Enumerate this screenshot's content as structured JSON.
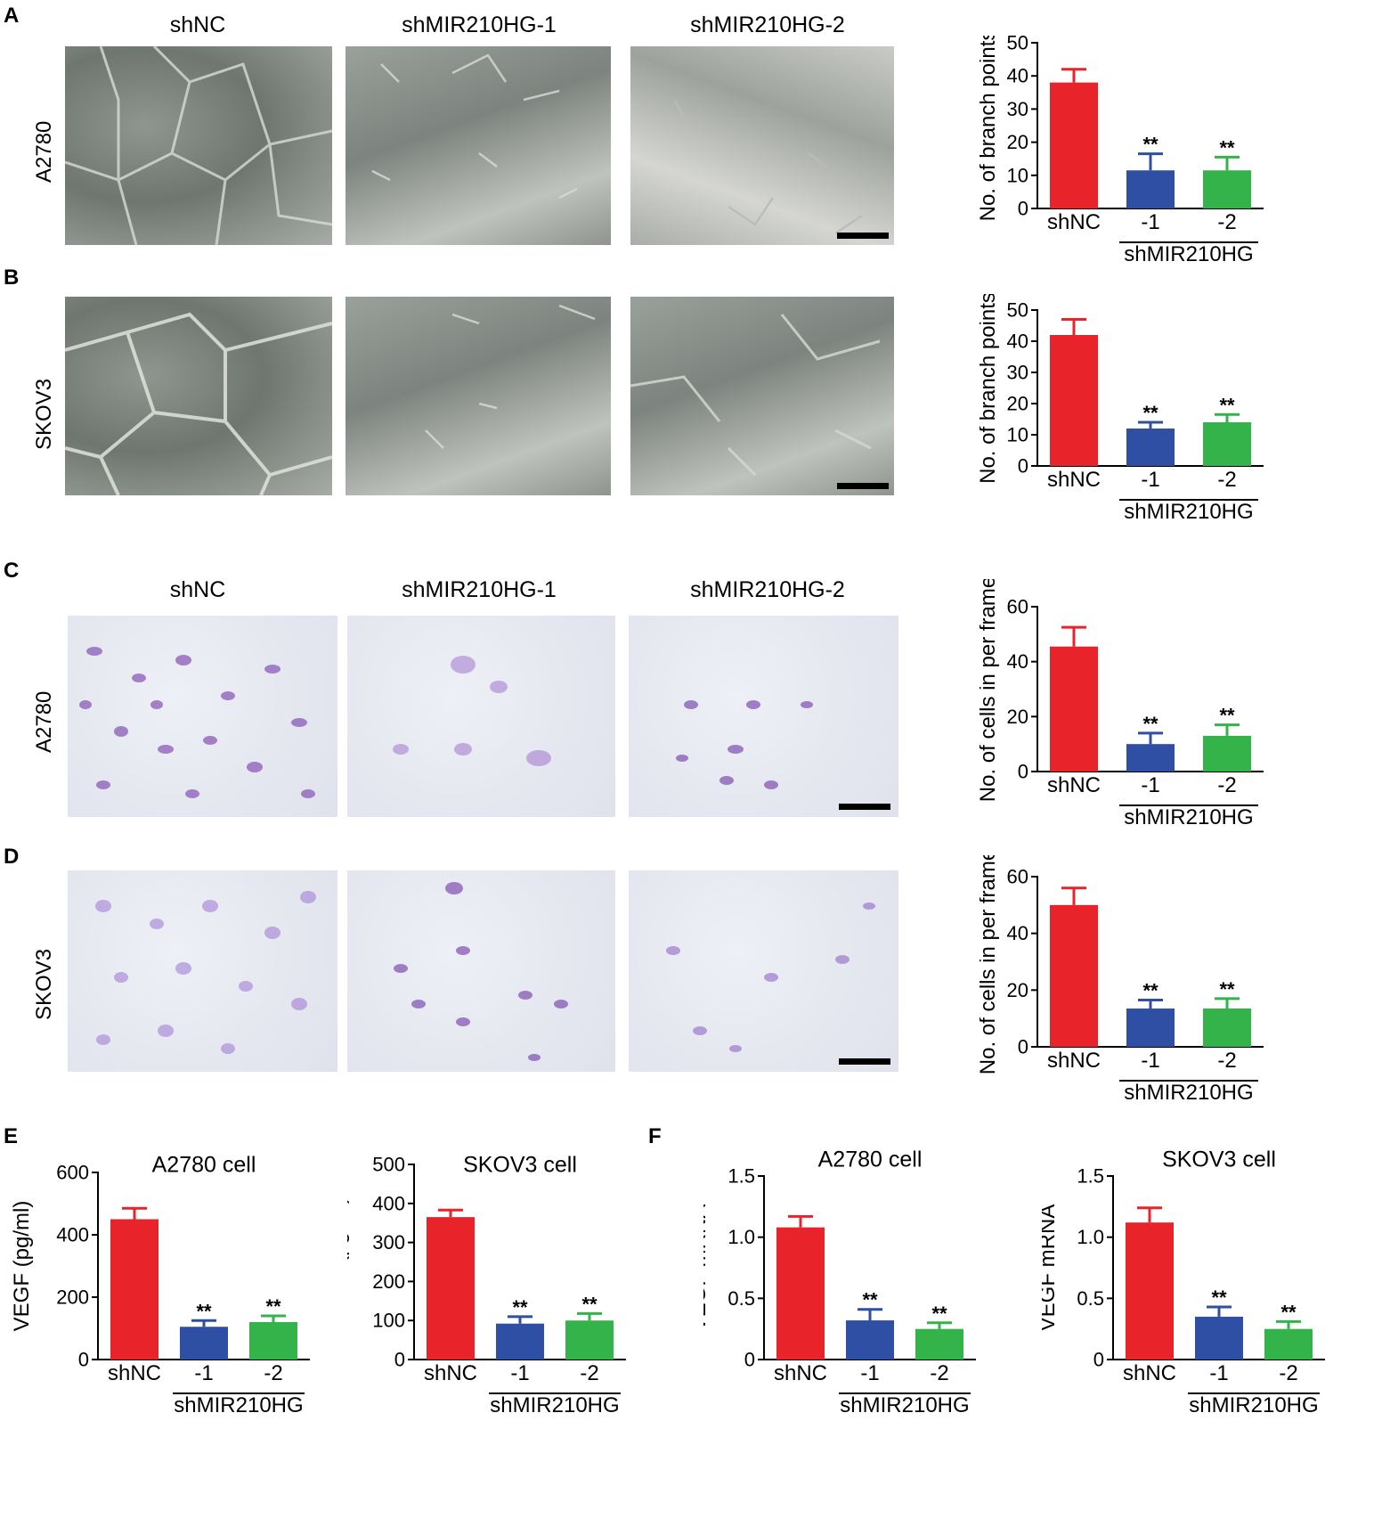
{
  "panel_letters": [
    "A",
    "B",
    "C",
    "D",
    "E",
    "F"
  ],
  "column_titles": {
    "top": [
      "shNC",
      "shMIR210HG-1",
      "shMIR210HG-2"
    ],
    "middle": [
      "shNC",
      "shMIR210HG-1",
      "shMIR210HG-2"
    ]
  },
  "row_labels": {
    "A": "A2780",
    "B": "SKOV3",
    "C": "A2780",
    "D": "SKOV3"
  },
  "colors": {
    "shNC": "#e8232a",
    "minus1": "#2e4fa3",
    "minus2": "#33b34a"
  },
  "chart_data": [
    {
      "id": "A",
      "type": "bar",
      "categories": [
        "shNC",
        "-1",
        "-2"
      ],
      "group_label": "shMIR210HG",
      "values": [
        38,
        11.5,
        11.5
      ],
      "errors": [
        4,
        5,
        4
      ],
      "significance": [
        "",
        "**",
        "**"
      ],
      "title": "",
      "ylabel": "No. of branch points",
      "ylim": [
        0,
        50
      ],
      "yticks": [
        0,
        10,
        20,
        30,
        40,
        50
      ]
    },
    {
      "id": "B",
      "type": "bar",
      "categories": [
        "shNC",
        "-1",
        "-2"
      ],
      "group_label": "shMIR210HG",
      "values": [
        42,
        12,
        14
      ],
      "errors": [
        5,
        2,
        2.5
      ],
      "significance": [
        "",
        "**",
        "**"
      ],
      "title": "",
      "ylabel": "No. of branch points",
      "ylim": [
        0,
        50
      ],
      "yticks": [
        0,
        10,
        20,
        30,
        40,
        50
      ]
    },
    {
      "id": "C",
      "type": "bar",
      "categories": [
        "shNC",
        "-1",
        "-2"
      ],
      "group_label": "shMIR210HG",
      "values": [
        45.5,
        10,
        13
      ],
      "errors": [
        7,
        4,
        4
      ],
      "significance": [
        "",
        "**",
        "**"
      ],
      "title": "",
      "ylabel": "No. of cells in per frame",
      "ylim": [
        0,
        60
      ],
      "yticks": [
        0,
        20,
        40,
        60
      ]
    },
    {
      "id": "D",
      "type": "bar",
      "categories": [
        "shNC",
        "-1",
        "-2"
      ],
      "group_label": "shMIR210HG",
      "values": [
        50,
        13.5,
        13.5
      ],
      "errors": [
        6,
        3,
        3.5
      ],
      "significance": [
        "",
        "**",
        "**"
      ],
      "title": "",
      "ylabel": "No. of cells in per frame",
      "ylim": [
        0,
        60
      ],
      "yticks": [
        0,
        20,
        40,
        60
      ]
    },
    {
      "id": "E1",
      "type": "bar",
      "categories": [
        "shNC",
        "-1",
        "-2"
      ],
      "group_label": "shMIR210HG",
      "values": [
        450,
        105,
        120
      ],
      "errors": [
        35,
        20,
        20
      ],
      "significance": [
        "",
        "**",
        "**"
      ],
      "title": "A2780 cell",
      "ylabel": "VEGF (pg/ml)",
      "ylim": [
        0,
        600
      ],
      "yticks": [
        0,
        200,
        400,
        600
      ]
    },
    {
      "id": "E2",
      "type": "bar",
      "categories": [
        "shNC",
        "-1",
        "-2"
      ],
      "group_label": "shMIR210HG",
      "values": [
        365,
        92,
        100
      ],
      "errors": [
        18,
        18,
        18
      ],
      "significance": [
        "",
        "**",
        "**"
      ],
      "title": "SKOV3 cell",
      "ylabel": "VEGF (pg/ml)",
      "ylim": [
        0,
        500
      ],
      "yticks": [
        0,
        100,
        200,
        300,
        400,
        500
      ]
    },
    {
      "id": "F1",
      "type": "bar",
      "categories": [
        "shNC",
        "-1",
        "-2"
      ],
      "group_label": "shMIR210HG",
      "values": [
        1.08,
        0.32,
        0.25
      ],
      "errors": [
        0.09,
        0.09,
        0.05
      ],
      "significance": [
        "",
        "**",
        "**"
      ],
      "title": "A2780 cell",
      "ylabel": "VEGF mRNA",
      "ylim": [
        0,
        1.5
      ],
      "yticks": [
        0,
        0.5,
        1.0,
        1.5
      ]
    },
    {
      "id": "F2",
      "type": "bar",
      "categories": [
        "shNC",
        "-1",
        "-2"
      ],
      "group_label": "shMIR210HG",
      "values": [
        1.12,
        0.35,
        0.25
      ],
      "errors": [
        0.12,
        0.08,
        0.06
      ],
      "significance": [
        "",
        "**",
        "**"
      ],
      "title": "SKOV3 cell",
      "ylabel": "VEGF mRNA",
      "ylim": [
        0,
        1.5
      ],
      "yticks": [
        0,
        0.5,
        1.0,
        1.5
      ]
    }
  ]
}
